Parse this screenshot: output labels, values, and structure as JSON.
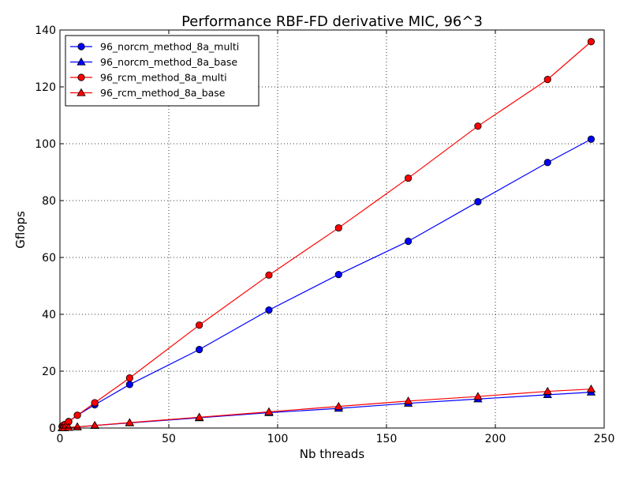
{
  "chart_data": {
    "type": "line",
    "title": "Performance RBF-FD derivative MIC, 96^3",
    "xlabel": "Nb threads",
    "ylabel": "Gflops",
    "xlim": [
      0,
      250
    ],
    "ylim": [
      0,
      140
    ],
    "xticks": [
      0,
      50,
      100,
      150,
      200,
      250
    ],
    "yticks": [
      0,
      20,
      40,
      60,
      80,
      100,
      120,
      140
    ],
    "grid": true,
    "legend_position": "top-left",
    "x": [
      1,
      2,
      4,
      8,
      16,
      32,
      64,
      96,
      128,
      160,
      192,
      224,
      244
    ],
    "series": [
      {
        "name": "96_norcm_method_8a_multi",
        "color": "#0000ff",
        "marker": "circle",
        "values": [
          0.6,
          1.2,
          2.3,
          4.5,
          8.2,
          15.3,
          27.6,
          41.5,
          54.0,
          65.7,
          79.6,
          93.4,
          101.6
        ]
      },
      {
        "name": "96_norcm_method_8a_base",
        "color": "#0000ff",
        "marker": "triangle",
        "values": [
          0.05,
          0.1,
          0.2,
          0.4,
          0.9,
          1.8,
          3.6,
          5.4,
          6.9,
          8.7,
          10.2,
          11.7,
          12.6
        ]
      },
      {
        "name": "96_rcm_method_8a_multi",
        "color": "#ff0000",
        "marker": "circle",
        "values": [
          0.6,
          1.1,
          2.2,
          4.5,
          8.9,
          17.6,
          36.2,
          53.8,
          70.4,
          87.9,
          106.2,
          122.6,
          135.9
        ]
      },
      {
        "name": "96_rcm_method_8a_base",
        "color": "#ff0000",
        "marker": "triangle",
        "values": [
          0.05,
          0.1,
          0.2,
          0.4,
          0.9,
          1.9,
          3.8,
          5.7,
          7.6,
          9.5,
          11.1,
          12.9,
          13.7
        ]
      }
    ]
  }
}
